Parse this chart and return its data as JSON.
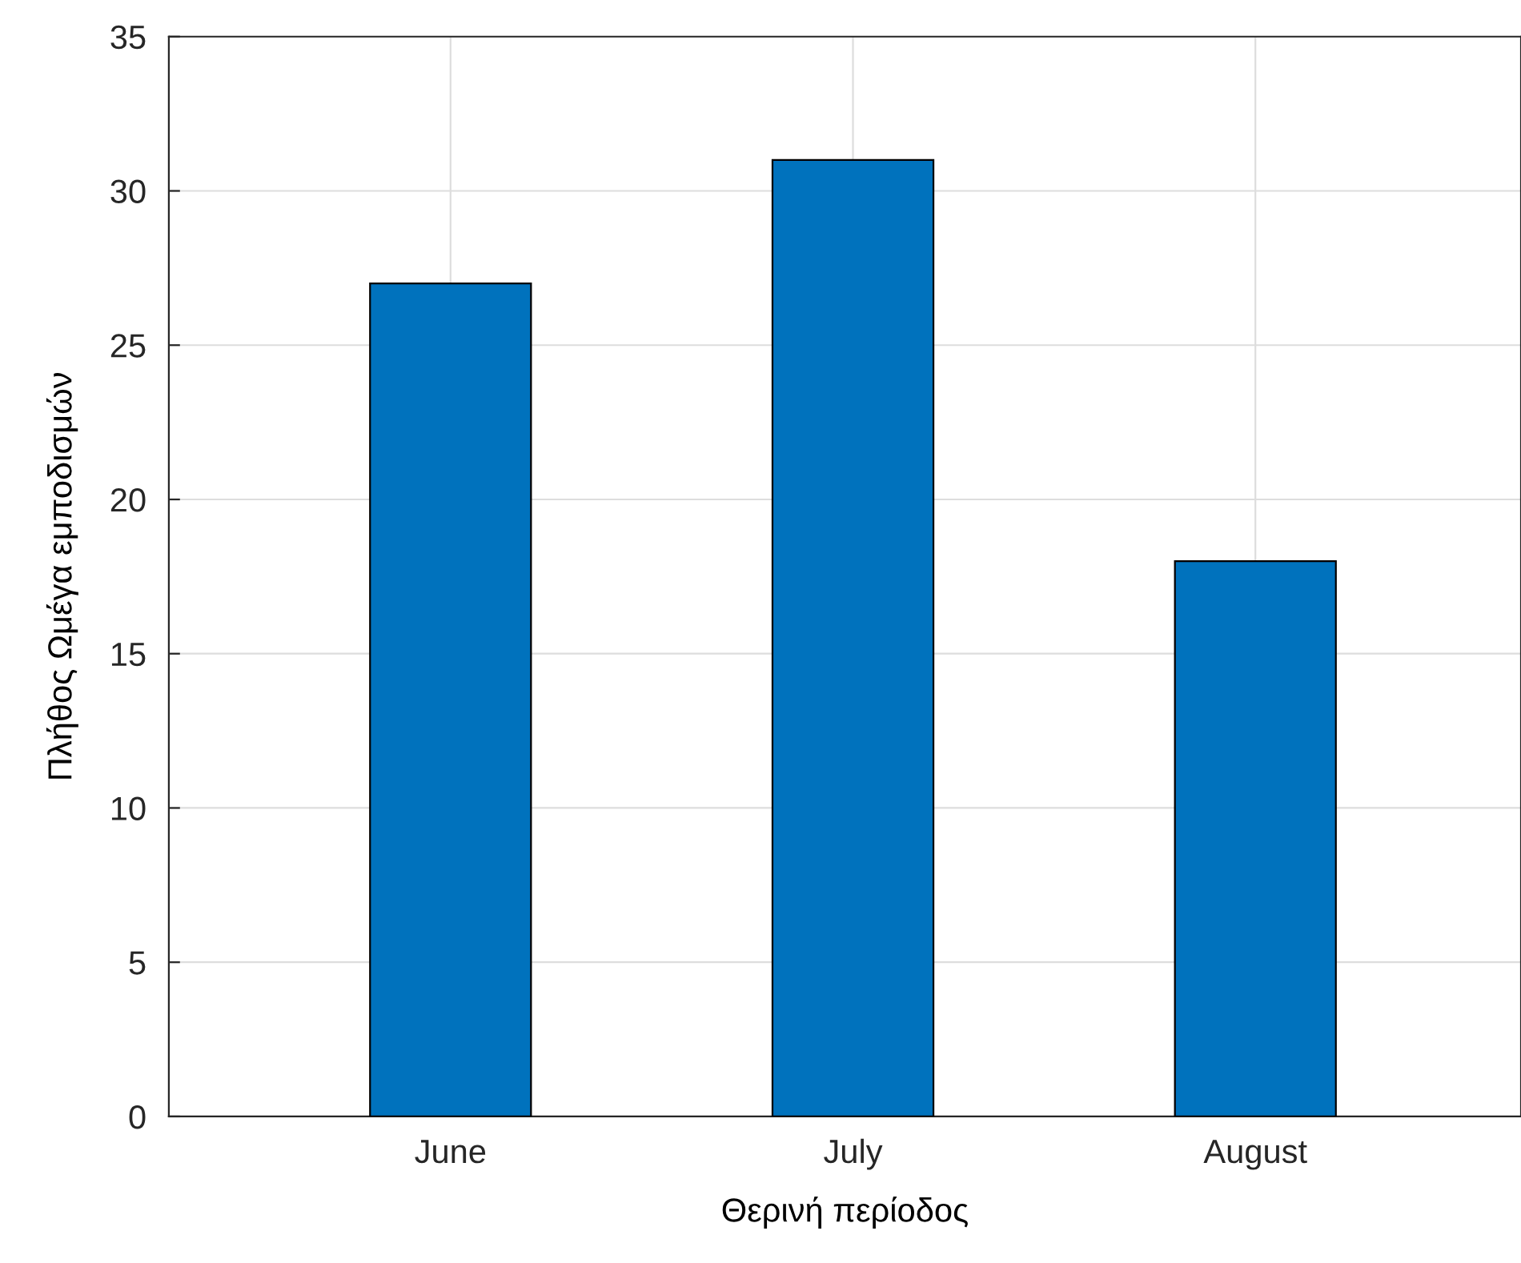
{
  "chart_data": {
    "type": "bar",
    "xlabel": "Θερινή περίοδος",
    "ylabel": "Πλήθος Ωμέγα εμποδισμών",
    "categories": [
      "June",
      "July",
      "August"
    ],
    "values": [
      27,
      31,
      18
    ],
    "color": "#0072bd",
    "ylim": [
      0,
      35
    ],
    "yticks": [
      0,
      5,
      10,
      15,
      20,
      25,
      30,
      35
    ],
    "grid": true
  }
}
